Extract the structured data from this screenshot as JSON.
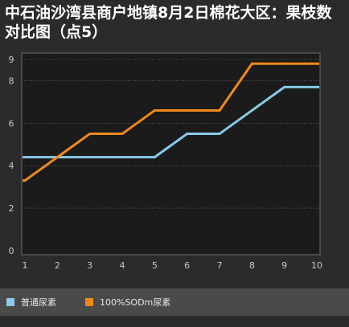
{
  "chart_data": {
    "type": "line",
    "title": "中石油沙湾县商户地镇8月2日棉花大区：果枝数对比图（点5）",
    "x": [
      1,
      2,
      3,
      4,
      5,
      6,
      7,
      8,
      9,
      10
    ],
    "xlim": [
      1,
      10
    ],
    "ylim": [
      0,
      9
    ],
    "y_ticks": [
      0,
      2,
      4,
      6,
      8,
      9
    ],
    "x_ticks": [
      1,
      2,
      3,
      4,
      5,
      6,
      7,
      8,
      9,
      10
    ],
    "grid": true,
    "legend_position": "bottom",
    "series": [
      {
        "name": "普通尿素",
        "color": "#87cbe8",
        "values": [
          4.4,
          4.4,
          4.4,
          4.4,
          4.4,
          5.5,
          5.5,
          6.6,
          7.7,
          7.7
        ]
      },
      {
        "name": "100%SODm尿素",
        "color": "#f0891d",
        "values": [
          3.3,
          4.4,
          5.5,
          5.5,
          6.6,
          6.6,
          6.6,
          8.8,
          8.8,
          8.8
        ]
      }
    ]
  }
}
